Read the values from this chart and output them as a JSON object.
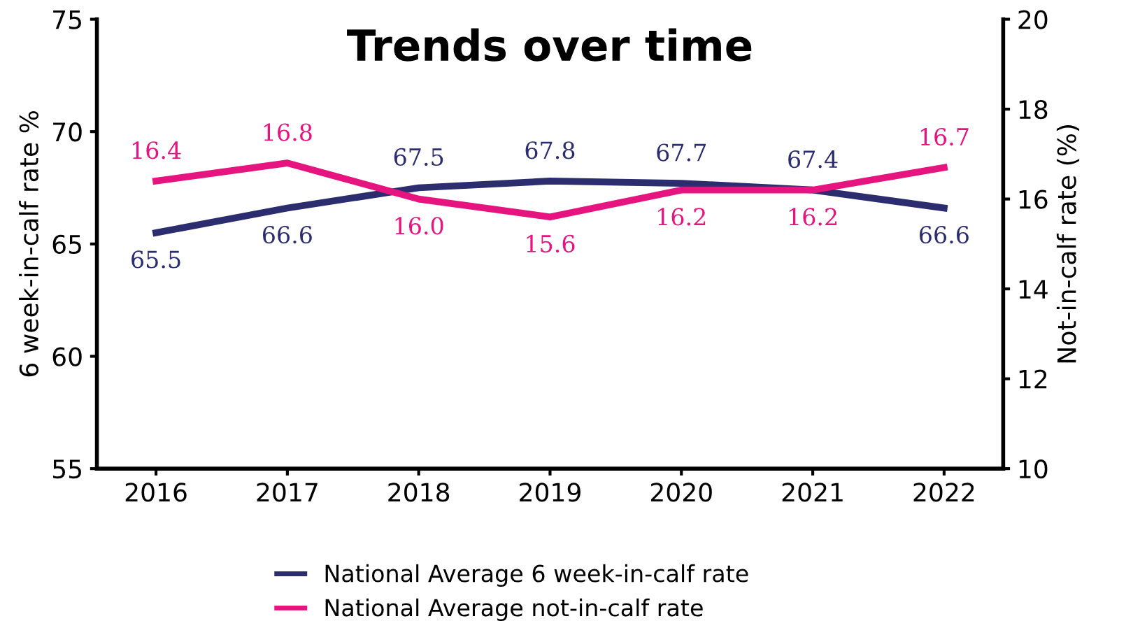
{
  "chart_data": {
    "type": "line",
    "title": "Trends over time",
    "ylabel": "6 week-in-calf rate %",
    "y2label": "Not-in-calf rate (%)",
    "categories": [
      "2016",
      "2017",
      "2018",
      "2019",
      "2020",
      "2021",
      "2022"
    ],
    "series": [
      {
        "name": "National Average 6 week-in-calf rate",
        "color": "#2b2d6e",
        "values": [
          65.5,
          66.6,
          67.5,
          67.8,
          67.7,
          67.4,
          66.6
        ],
        "value_labels": [
          "65.5",
          "66.6",
          "67.5",
          "67.8",
          "67.7",
          "67.4",
          "66.6"
        ]
      },
      {
        "name": "National Average not-in-calf rate",
        "color": "#e6147f",
        "axis": "y2",
        "values": [
          16.4,
          16.8,
          16.0,
          15.6,
          16.2,
          16.2,
          16.7
        ],
        "value_labels": [
          "16.4",
          "16.8",
          "16.0",
          "15.6",
          "16.2",
          "16.2",
          "16.7"
        ]
      }
    ],
    "ylim": [
      55,
      75
    ],
    "yticks": [
      55,
      60,
      65,
      70,
      75
    ],
    "y2lim": [
      10,
      20
    ],
    "y2ticks": [
      10,
      12,
      14,
      16,
      18,
      20
    ],
    "legend": "bottom",
    "grid": false,
    "marker": "none",
    "line_style": "solid"
  }
}
